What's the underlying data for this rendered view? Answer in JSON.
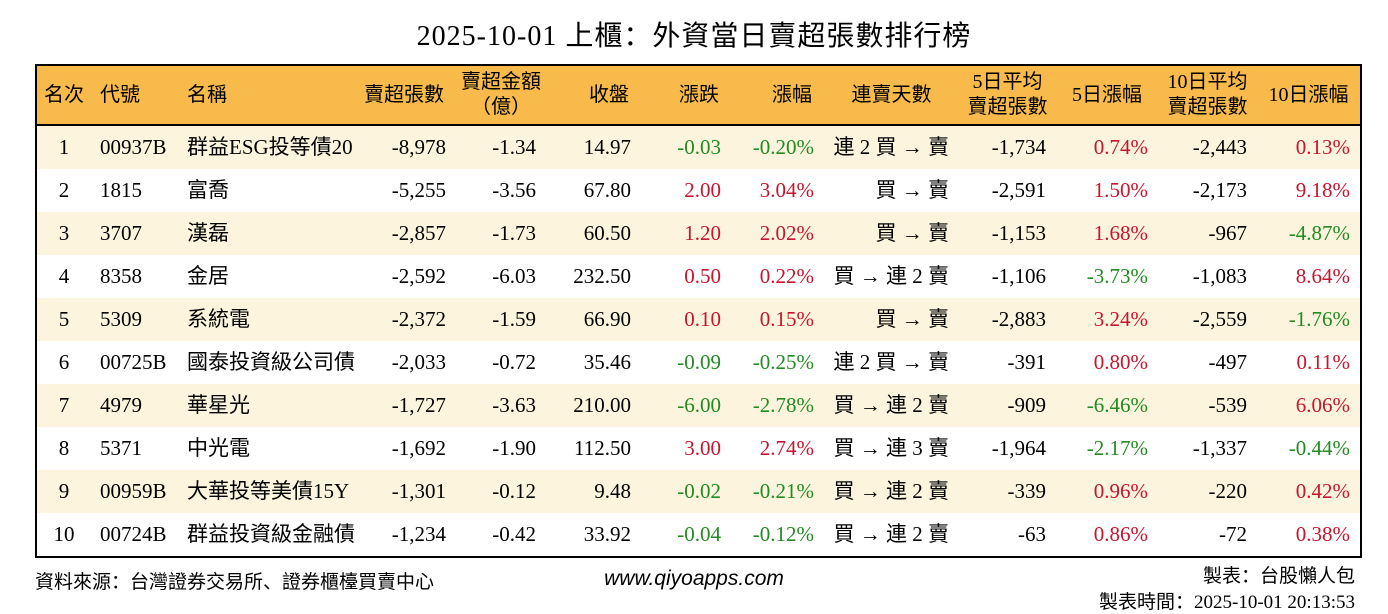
{
  "chart_data": {
    "type": "table",
    "title": "2025-10-01 上櫃：外資當日賣超張數排行榜",
    "columns": [
      {
        "key": "rank",
        "label": "名次",
        "lines": [
          "名次"
        ]
      },
      {
        "key": "code",
        "label": "代號",
        "lines": [
          "代號"
        ]
      },
      {
        "key": "name",
        "label": "名稱",
        "lines": [
          "名稱"
        ]
      },
      {
        "key": "sell_volume",
        "label": "賣超張數",
        "lines": [
          "賣超張數"
        ]
      },
      {
        "key": "sell_amount",
        "label": "賣超金額（億）",
        "lines": [
          "賣超金額",
          "（億）"
        ]
      },
      {
        "key": "close",
        "label": "收盤",
        "lines": [
          "收盤"
        ]
      },
      {
        "key": "change",
        "label": "漲跌",
        "lines": [
          "漲跌"
        ]
      },
      {
        "key": "change_pct",
        "label": "漲幅",
        "lines": [
          "漲幅"
        ]
      },
      {
        "key": "streak",
        "label": "連賣天數",
        "lines": [
          "連賣天數"
        ]
      },
      {
        "key": "avg5_sell",
        "label": "5日平均賣超張數",
        "lines": [
          "5日平均",
          "賣超張數"
        ]
      },
      {
        "key": "pct5",
        "label": "5日漲幅",
        "lines": [
          "5日漲幅"
        ]
      },
      {
        "key": "avg10_sell",
        "label": "10日平均賣超張數",
        "lines": [
          "10日平均",
          "賣超張數"
        ]
      },
      {
        "key": "pct10",
        "label": "10日漲幅",
        "lines": [
          "10日漲幅"
        ]
      }
    ],
    "rows": [
      {
        "rank": "1",
        "code": "00937B",
        "name": "群益ESG投等債20",
        "sell_volume": "-8,978",
        "sell_amount": "-1.34",
        "close": "14.97",
        "change": {
          "text": "-0.03",
          "color": "green"
        },
        "change_pct": {
          "text": "-0.20%",
          "color": "green"
        },
        "streak": "連 2 買 → 賣",
        "avg5_sell": "-1,734",
        "pct5": {
          "text": "0.74%",
          "color": "red"
        },
        "avg10_sell": "-2,443",
        "pct10": {
          "text": "0.13%",
          "color": "red"
        }
      },
      {
        "rank": "2",
        "code": "1815",
        "name": "富喬",
        "sell_volume": "-5,255",
        "sell_amount": "-3.56",
        "close": "67.80",
        "change": {
          "text": "2.00",
          "color": "red"
        },
        "change_pct": {
          "text": "3.04%",
          "color": "red"
        },
        "streak": "買 → 賣",
        "avg5_sell": "-2,591",
        "pct5": {
          "text": "1.50%",
          "color": "red"
        },
        "avg10_sell": "-2,173",
        "pct10": {
          "text": "9.18%",
          "color": "red"
        }
      },
      {
        "rank": "3",
        "code": "3707",
        "name": "漢磊",
        "sell_volume": "-2,857",
        "sell_amount": "-1.73",
        "close": "60.50",
        "change": {
          "text": "1.20",
          "color": "red"
        },
        "change_pct": {
          "text": "2.02%",
          "color": "red"
        },
        "streak": "買 → 賣",
        "avg5_sell": "-1,153",
        "pct5": {
          "text": "1.68%",
          "color": "red"
        },
        "avg10_sell": "-967",
        "pct10": {
          "text": "-4.87%",
          "color": "green"
        }
      },
      {
        "rank": "4",
        "code": "8358",
        "name": "金居",
        "sell_volume": "-2,592",
        "sell_amount": "-6.03",
        "close": "232.50",
        "change": {
          "text": "0.50",
          "color": "red"
        },
        "change_pct": {
          "text": "0.22%",
          "color": "red"
        },
        "streak": "買 → 連 2 賣",
        "avg5_sell": "-1,106",
        "pct5": {
          "text": "-3.73%",
          "color": "green"
        },
        "avg10_sell": "-1,083",
        "pct10": {
          "text": "8.64%",
          "color": "red"
        }
      },
      {
        "rank": "5",
        "code": "5309",
        "name": "系統電",
        "sell_volume": "-2,372",
        "sell_amount": "-1.59",
        "close": "66.90",
        "change": {
          "text": "0.10",
          "color": "red"
        },
        "change_pct": {
          "text": "0.15%",
          "color": "red"
        },
        "streak": "買 → 賣",
        "avg5_sell": "-2,883",
        "pct5": {
          "text": "3.24%",
          "color": "red"
        },
        "avg10_sell": "-2,559",
        "pct10": {
          "text": "-1.76%",
          "color": "green"
        }
      },
      {
        "rank": "6",
        "code": "00725B",
        "name": "國泰投資級公司債",
        "sell_volume": "-2,033",
        "sell_amount": "-0.72",
        "close": "35.46",
        "change": {
          "text": "-0.09",
          "color": "green"
        },
        "change_pct": {
          "text": "-0.25%",
          "color": "green"
        },
        "streak": "連 2 買 → 賣",
        "avg5_sell": "-391",
        "pct5": {
          "text": "0.80%",
          "color": "red"
        },
        "avg10_sell": "-497",
        "pct10": {
          "text": "0.11%",
          "color": "red"
        }
      },
      {
        "rank": "7",
        "code": "4979",
        "name": "華星光",
        "sell_volume": "-1,727",
        "sell_amount": "-3.63",
        "close": "210.00",
        "change": {
          "text": "-6.00",
          "color": "green"
        },
        "change_pct": {
          "text": "-2.78%",
          "color": "green"
        },
        "streak": "買 → 連 2 賣",
        "avg5_sell": "-909",
        "pct5": {
          "text": "-6.46%",
          "color": "green"
        },
        "avg10_sell": "-539",
        "pct10": {
          "text": "6.06%",
          "color": "red"
        }
      },
      {
        "rank": "8",
        "code": "5371",
        "name": "中光電",
        "sell_volume": "-1,692",
        "sell_amount": "-1.90",
        "close": "112.50",
        "change": {
          "text": "3.00",
          "color": "red"
        },
        "change_pct": {
          "text": "2.74%",
          "color": "red"
        },
        "streak": "買 → 連 3 賣",
        "avg5_sell": "-1,964",
        "pct5": {
          "text": "-2.17%",
          "color": "green"
        },
        "avg10_sell": "-1,337",
        "pct10": {
          "text": "-0.44%",
          "color": "green"
        }
      },
      {
        "rank": "9",
        "code": "00959B",
        "name": "大華投等美債15Y",
        "sell_volume": "-1,301",
        "sell_amount": "-0.12",
        "close": "9.48",
        "change": {
          "text": "-0.02",
          "color": "green"
        },
        "change_pct": {
          "text": "-0.21%",
          "color": "green"
        },
        "streak": "買 → 連 2 賣",
        "avg5_sell": "-339",
        "pct5": {
          "text": "0.96%",
          "color": "red"
        },
        "avg10_sell": "-220",
        "pct10": {
          "text": "0.42%",
          "color": "red"
        }
      },
      {
        "rank": "10",
        "code": "00724B",
        "name": "群益投資級金融債",
        "sell_volume": "-1,234",
        "sell_amount": "-0.42",
        "close": "33.92",
        "change": {
          "text": "-0.04",
          "color": "green"
        },
        "change_pct": {
          "text": "-0.12%",
          "color": "green"
        },
        "streak": "買 → 連 2 賣",
        "avg5_sell": "-63",
        "pct5": {
          "text": "0.86%",
          "color": "red"
        },
        "avg10_sell": "-72",
        "pct10": {
          "text": "0.38%",
          "color": "red"
        }
      }
    ]
  },
  "footer": {
    "source": "資料來源：台灣證券交易所、證券櫃檯買賣中心",
    "website": "www.qiyoapps.com",
    "maker": "製表：台股懶人包",
    "timestamp": "製表時間：2025-10-01 20:13:53"
  },
  "colors": {
    "header_bg": "#F7BA4B",
    "row_odd_bg": "#FCF4DD",
    "row_even_bg": "#FFFFFF",
    "up_red": "#C8142C",
    "down_green": "#228B22",
    "border": "#000000"
  }
}
